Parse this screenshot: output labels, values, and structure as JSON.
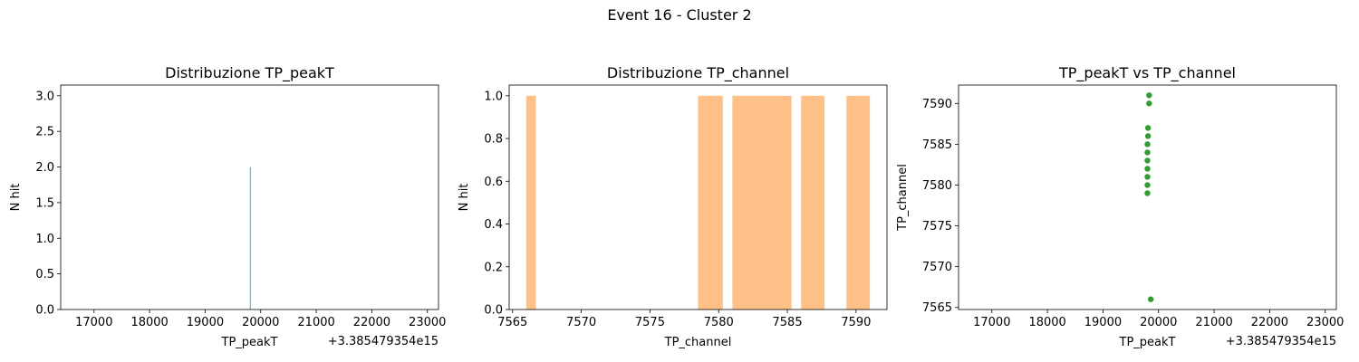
{
  "suptitle": "Event 16 - Cluster 2",
  "chart_data": [
    {
      "type": "bar",
      "title": "Distribuzione TP_peakT",
      "xlabel": "TP_peakT",
      "ylabel": "N hit",
      "offset_label": "+3.385479354e15",
      "xlim": [
        16400,
        23200
      ],
      "ylim": [
        0,
        3.15
      ],
      "xticks": [
        17000,
        18000,
        19000,
        20000,
        21000,
        22000,
        23000
      ],
      "yticks": [
        0.0,
        0.5,
        1.0,
        1.5,
        2.0,
        2.5,
        3.0
      ],
      "grid": false,
      "color": "#1f77b4",
      "bars": [
        {
          "x0": 19805,
          "x1": 19815,
          "value": 2
        }
      ]
    },
    {
      "type": "bar",
      "title": "Distribuzione TP_channel",
      "xlabel": "TP_channel",
      "ylabel": "N hit",
      "xlim": [
        7564.75,
        7592.25
      ],
      "ylim": [
        0,
        1.05
      ],
      "xticks": [
        7565,
        7570,
        7575,
        7580,
        7585,
        7590
      ],
      "yticks": [
        0.0,
        0.2,
        0.4,
        0.6,
        0.8,
        1.0
      ],
      "grid": false,
      "color": "#ffa656",
      "bars": [
        {
          "x0": 7566.0,
          "x1": 7566.7,
          "value": 1
        },
        {
          "x0": 7578.5,
          "x1": 7580.3,
          "value": 1
        },
        {
          "x0": 7581.0,
          "x1": 7585.3,
          "value": 1
        },
        {
          "x0": 7586.0,
          "x1": 7587.7,
          "value": 1
        },
        {
          "x0": 7589.3,
          "x1": 7591.0,
          "value": 1
        }
      ]
    },
    {
      "type": "scatter",
      "title": "TP_peakT vs TP_channel",
      "xlabel": "TP_peakT",
      "ylabel": "TP_channel",
      "offset_label": "+3.385479354e15",
      "xlim": [
        16400,
        23200
      ],
      "ylim": [
        7564.75,
        7592.25
      ],
      "xticks": [
        17000,
        18000,
        19000,
        20000,
        21000,
        22000,
        23000
      ],
      "yticks": [
        7565,
        7570,
        7575,
        7580,
        7585,
        7590
      ],
      "grid": false,
      "color": "#2ca02c",
      "points": [
        {
          "x": 19830,
          "y": 7591
        },
        {
          "x": 19830,
          "y": 7590
        },
        {
          "x": 19810,
          "y": 7587
        },
        {
          "x": 19810,
          "y": 7586
        },
        {
          "x": 19800,
          "y": 7585
        },
        {
          "x": 19800,
          "y": 7584
        },
        {
          "x": 19800,
          "y": 7583
        },
        {
          "x": 19800,
          "y": 7582
        },
        {
          "x": 19800,
          "y": 7581
        },
        {
          "x": 19800,
          "y": 7580
        },
        {
          "x": 19800,
          "y": 7579
        },
        {
          "x": 19860,
          "y": 7566
        }
      ]
    }
  ]
}
